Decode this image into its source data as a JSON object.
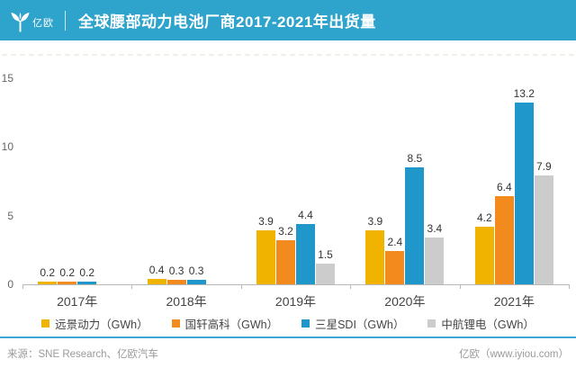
{
  "header": {
    "logo_text": "亿欧",
    "title": "全球腰部动力电池厂商2017-2021年出货量",
    "bg_color": "#2EA3CC"
  },
  "chart_data": {
    "type": "bar",
    "title": "全球腰部动力电池厂商2017-2021年出货量",
    "categories": [
      "2017年",
      "2018年",
      "2019年",
      "2020年",
      "2021年"
    ],
    "series": [
      {
        "name": "远景动力（GWh）",
        "color": "#F0B400",
        "values": [
          0.2,
          0.4,
          3.9,
          3.9,
          4.2
        ]
      },
      {
        "name": "国轩高科（GWh）",
        "color": "#F28A1E",
        "values": [
          0.2,
          0.3,
          3.2,
          2.4,
          6.4
        ]
      },
      {
        "name": "三星SDI（GWh）",
        "color": "#2097CB",
        "values": [
          0.2,
          0.3,
          4.4,
          8.5,
          13.2
        ]
      },
      {
        "name": "中航锂电（GWh）",
        "color": "#CCCCCC",
        "values": [
          null,
          null,
          1.5,
          3.4,
          7.9
        ]
      }
    ],
    "xlabel": "",
    "ylabel": "",
    "ylim": [
      0,
      15
    ],
    "yticks": [
      0,
      5,
      10,
      15
    ],
    "grid": false,
    "legend_position": "bottom",
    "value_labels": true
  },
  "footer": {
    "source": "来源：SNE Research、亿欧汽车",
    "site": "亿欧（www.iyiou.com）"
  }
}
